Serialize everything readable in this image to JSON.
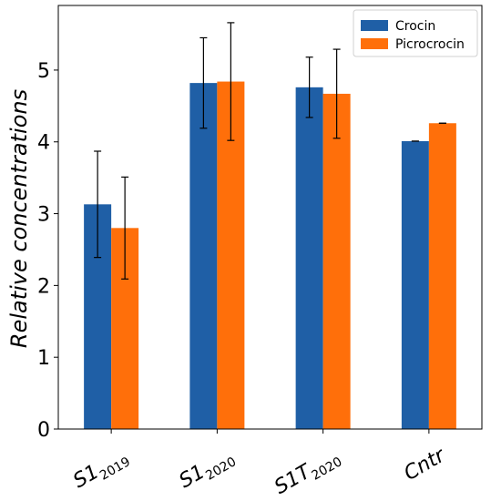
{
  "chart_data": {
    "type": "bar",
    "categories": [
      {
        "base": "S1",
        "sub": "2019"
      },
      {
        "base": "S1",
        "sub": "2020"
      },
      {
        "base": "S1T",
        "sub": "2020"
      },
      {
        "base": "Cntr",
        "sub": ""
      }
    ],
    "series": [
      {
        "name": "Crocin",
        "color": "#1f5fa6",
        "values": [
          3.13,
          4.82,
          4.76,
          4.01
        ],
        "errors": [
          0.74,
          0.63,
          0.42,
          0.0
        ]
      },
      {
        "name": "Picrocrocin",
        "color": "#ff6f0a",
        "values": [
          2.8,
          4.84,
          4.67,
          4.26
        ],
        "errors": [
          0.71,
          0.82,
          0.62,
          0.0
        ]
      }
    ],
    "title": "",
    "xlabel": "",
    "ylabel": "Relative concentrations",
    "ylim": [
      0,
      5.9
    ],
    "yticks": [
      0,
      1,
      2,
      3,
      4,
      5
    ],
    "grid": false,
    "legend_position": "top-right"
  }
}
